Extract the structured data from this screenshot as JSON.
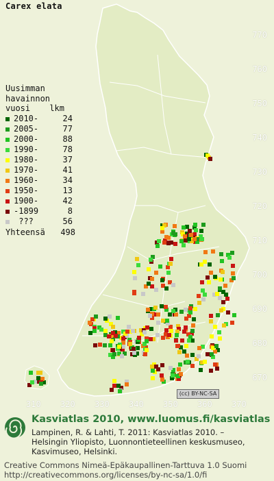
{
  "title": "Carex elata",
  "colors": {
    "land": "#e3ecc4",
    "sea": "#eef2da",
    "border": "#ffffff",
    "brand": "#2d7a3a"
  },
  "axes": {
    "y_ticks": [
      "770",
      "760",
      "750",
      "740",
      "730",
      "720",
      "710",
      "700",
      "690",
      "680",
      "670"
    ],
    "x_ticks": [
      "310",
      "320",
      "330",
      "340",
      "350",
      "360",
      "370"
    ]
  },
  "legend": {
    "header": [
      "Uusimman",
      "havainnon"
    ],
    "col_year": "vuosi",
    "col_count": "lkm",
    "rows": [
      {
        "label": "2010-",
        "count": "24",
        "color": "#006400"
      },
      {
        "label": "2005-",
        "count": "77",
        "color": "#1e9b1e"
      },
      {
        "label": "2000-",
        "count": "88",
        "color": "#22c322"
      },
      {
        "label": "1990-",
        "count": "78",
        "color": "#3bdb3b"
      },
      {
        "label": "1980-",
        "count": "37",
        "color": "#ffff00"
      },
      {
        "label": "1970-",
        "count": "41",
        "color": "#f0c814"
      },
      {
        "label": "1960-",
        "count": "34",
        "color": "#f07814"
      },
      {
        "label": "1950-",
        "count": "13",
        "color": "#e03c14"
      },
      {
        "label": "1900-",
        "count": "42",
        "color": "#c81414"
      },
      {
        "label": "-1899",
        "count": "8",
        "color": "#7a0a0a"
      },
      {
        "label": "???",
        "count": "56",
        "color": "#c8c8c8"
      }
    ],
    "total_label": "Yhteensä",
    "total_count": "498"
  },
  "license_badge": "(cc) BY-NC-SA",
  "footer": {
    "brand": "Kasviatlas 2010, www.luomus.fi/kasviatlas",
    "citation_lines": [
      "Lampinen, R. & Lahti, T. 2011: Kasviatlas 2010. –",
      "Helsingin Yliopisto, Luonnontieteellinen keskusmuseo,",
      "Kasvimuseo, Helsinki."
    ],
    "license_lines": [
      "Creative Commons Nimeä-Epäkaupallinen-Tarttuva 1.0 Suomi",
      "http://creativecommons.org/licenses/by-nc-sa/1.0/fi"
    ]
  }
}
